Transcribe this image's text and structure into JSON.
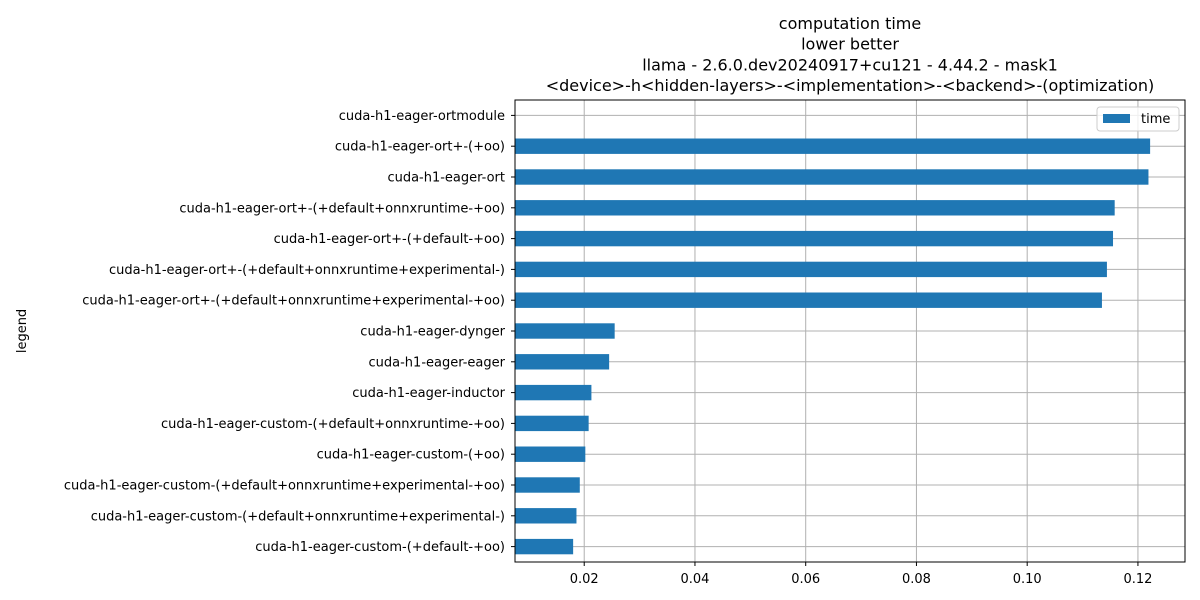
{
  "chart_data": {
    "type": "bar",
    "orientation": "horizontal",
    "title_lines": [
      "computation time",
      "lower better",
      "llama - 2.6.0.dev20240917+cu121 - 4.44.2 - mask1",
      "<device>-h<hidden-layers>-<implementation>-<backend>-(optimization)"
    ],
    "ylabel": "legend",
    "xlabel": "",
    "xlim": [
      0.0075,
      0.1285
    ],
    "xticks": [
      0.02,
      0.04,
      0.06,
      0.08,
      0.1,
      0.12
    ],
    "xtick_labels": [
      "0.02",
      "0.04",
      "0.06",
      "0.08",
      "0.10",
      "0.12"
    ],
    "grid": true,
    "legend_position": "top-right",
    "bar_color": "#1f77b4",
    "categories": [
      "cuda-h1-eager-ortmodule",
      "cuda-h1-eager-ort+-(+oo)",
      "cuda-h1-eager-ort",
      "cuda-h1-eager-ort+-(+default+onnxruntime-+oo)",
      "cuda-h1-eager-ort+-(+default-+oo)",
      "cuda-h1-eager-ort+-(+default+onnxruntime+experimental-)",
      "cuda-h1-eager-ort+-(+default+onnxruntime+experimental-+oo)",
      "cuda-h1-eager-dynger",
      "cuda-h1-eager-eager",
      "cuda-h1-eager-inductor",
      "cuda-h1-eager-custom-(+default+onnxruntime-+oo)",
      "cuda-h1-eager-custom-(+oo)",
      "cuda-h1-eager-custom-(+default+onnxruntime+experimental-+oo)",
      "cuda-h1-eager-custom-(+default+onnxruntime+experimental-)",
      "cuda-h1-eager-custom-(+default-+oo)"
    ],
    "series": [
      {
        "name": "time",
        "values": [
          0.0075,
          0.1222,
          0.1219,
          0.1158,
          0.1155,
          0.1144,
          0.1135,
          0.0255,
          0.0245,
          0.0213,
          0.0208,
          0.0202,
          0.0192,
          0.0186,
          0.018
        ]
      }
    ]
  }
}
